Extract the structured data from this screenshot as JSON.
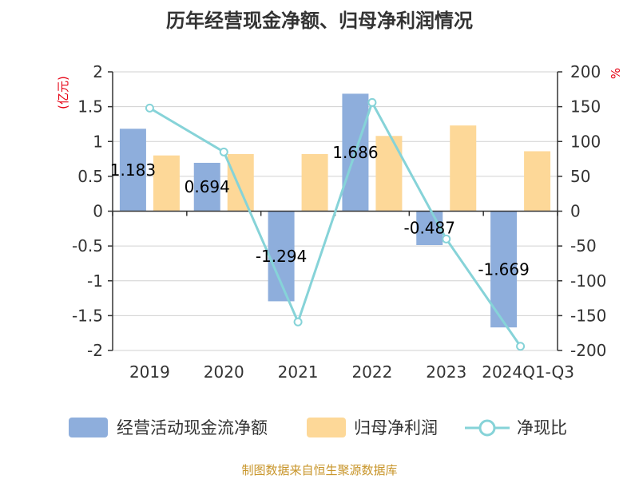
{
  "title": "历年经营现金净额、归母净利润情况",
  "source": "制图数据来自恒生聚源数据库",
  "left_axis_unit": "(亿元)",
  "right_axis_unit": "%",
  "colors": {
    "cash_flow": "#8eaedc",
    "net_profit": "#fdd898",
    "ratio": "#86d3d8",
    "unit": "#e60012",
    "source": "#c8952a"
  },
  "chart_data": {
    "type": "bar",
    "categories": [
      "2019",
      "2020",
      "2021",
      "2022",
      "2023",
      "2024Q1-Q3"
    ],
    "series": [
      {
        "name": "经营活动现金流净额",
        "type": "bar",
        "axis": "left",
        "values": [
          1.183,
          0.694,
          -1.294,
          1.686,
          -0.487,
          -1.669
        ],
        "labels": [
          "1.183",
          "0.694",
          "-1.294",
          "1.686",
          "-0.487",
          "-1.669"
        ]
      },
      {
        "name": "归母净利润",
        "type": "bar",
        "axis": "left",
        "values": [
          0.8,
          0.82,
          0.82,
          1.08,
          1.23,
          0.86
        ]
      },
      {
        "name": "净现比",
        "type": "line",
        "axis": "right",
        "values": [
          148,
          85,
          -159,
          156,
          -40,
          -194
        ]
      }
    ],
    "y_left": {
      "min": -2,
      "max": 2,
      "ticks": [
        2,
        1.5,
        1,
        0.5,
        0,
        -0.5,
        -1,
        -1.5,
        -2
      ],
      "tick_labels": [
        "2",
        "1.5",
        "1",
        "0.5",
        "0",
        "-0.5",
        "-1",
        "-1.5",
        "-2"
      ]
    },
    "y_right": {
      "min": -200,
      "max": 200,
      "ticks": [
        200,
        150,
        100,
        50,
        0,
        -50,
        -100,
        -150,
        -200
      ],
      "tick_labels": [
        "200",
        "150",
        "100",
        "50",
        "0",
        "-50",
        "-100",
        "-150",
        "-200"
      ]
    },
    "grid": true,
    "legend_position": "bottom"
  }
}
